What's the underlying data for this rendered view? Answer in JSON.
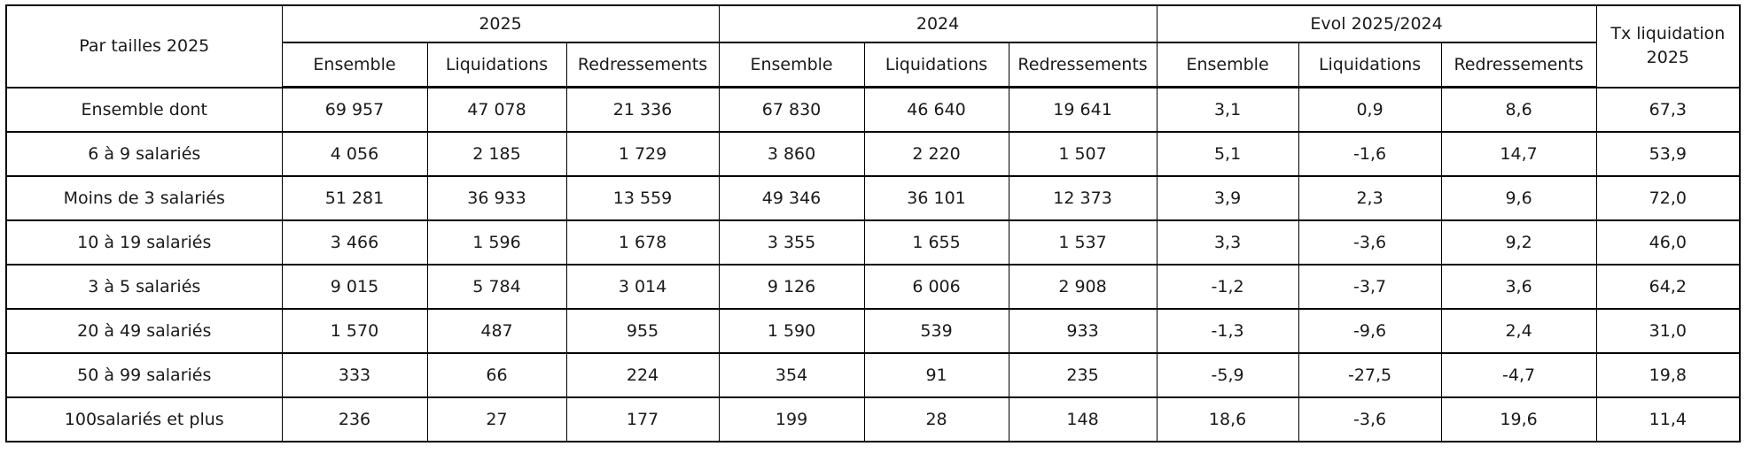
{
  "table": {
    "corner_header": "Par tailles 2025",
    "groups": [
      {
        "label": "2025",
        "columns": [
          "Ensemble",
          "Liquidations",
          "Redressements"
        ]
      },
      {
        "label": "2024",
        "columns": [
          "Ensemble",
          "Liquidations",
          "Redressements"
        ]
      },
      {
        "label": "Evol 2025/2024",
        "columns": [
          "Ensemble",
          "Liquidations",
          "Redressements"
        ]
      }
    ],
    "tx_header": {
      "line1": "Tx liquidation",
      "line2": "2025"
    },
    "rows": [
      {
        "label": "Ensemble dont",
        "values": [
          "69 957",
          "47 078",
          "21 336",
          "67 830",
          "46 640",
          "19 641",
          "3,1",
          "0,9",
          "8,6",
          "67,3"
        ]
      },
      {
        "label": "6 à 9 salariés",
        "values": [
          "4 056",
          "2 185",
          "1 729",
          "3 860",
          "2 220",
          "1 507",
          "5,1",
          "-1,6",
          "14,7",
          "53,9"
        ]
      },
      {
        "label": "Moins de 3 salariés",
        "values": [
          "51 281",
          "36 933",
          "13 559",
          "49 346",
          "36 101",
          "12 373",
          "3,9",
          "2,3",
          "9,6",
          "72,0"
        ]
      },
      {
        "label": "10 à 19 salariés",
        "values": [
          "3 466",
          "1 596",
          "1 678",
          "3 355",
          "1 655",
          "1 537",
          "3,3",
          "-3,6",
          "9,2",
          "46,0"
        ]
      },
      {
        "label": "3 à 5 salariés",
        "values": [
          "9 015",
          "5 784",
          "3 014",
          "9 126",
          "6 006",
          "2 908",
          "-1,2",
          "-3,7",
          "3,6",
          "64,2"
        ]
      },
      {
        "label": "20 à 49 salariés",
        "values": [
          "1 570",
          "487",
          "955",
          "1 590",
          "539",
          "933",
          "-1,3",
          "-9,6",
          "2,4",
          "31,0"
        ]
      },
      {
        "label": "50 à 99 salariés",
        "values": [
          "333",
          "66",
          "224",
          "354",
          "91",
          "235",
          "-5,9",
          "-27,5",
          "-4,7",
          "19,8"
        ]
      },
      {
        "label": "100salariés et plus",
        "values": [
          "236",
          "27",
          "177",
          "199",
          "28",
          "148",
          "18,6",
          "-3,6",
          "19,6",
          "11,4"
        ]
      }
    ]
  },
  "chart_data": {
    "type": "table",
    "title": "Par tailles 2025",
    "column_groups": [
      "2025",
      "2024",
      "Evol 2025/2024",
      "Tx liquidation 2025"
    ],
    "columns": [
      "Par tailles 2025",
      "2025 Ensemble",
      "2025 Liquidations",
      "2025 Redressements",
      "2024 Ensemble",
      "2024 Liquidations",
      "2024 Redressements",
      "Evol 2025/2024 Ensemble",
      "Evol 2025/2024 Liquidations",
      "Evol 2025/2024 Redressements",
      "Tx liquidation 2025"
    ],
    "rows": [
      [
        "Ensemble dont",
        69957,
        47078,
        21336,
        67830,
        46640,
        19641,
        3.1,
        0.9,
        8.6,
        67.3
      ],
      [
        "6 à 9 salariés",
        4056,
        2185,
        1729,
        3860,
        2220,
        1507,
        5.1,
        -1.6,
        14.7,
        53.9
      ],
      [
        "Moins de 3 salariés",
        51281,
        36933,
        13559,
        49346,
        36101,
        12373,
        3.9,
        2.3,
        9.6,
        72.0
      ],
      [
        "10 à 19 salariés",
        3466,
        1596,
        1678,
        3355,
        1655,
        1537,
        3.3,
        -3.6,
        9.2,
        46.0
      ],
      [
        "3 à 5 salariés",
        9015,
        5784,
        3014,
        9126,
        6006,
        2908,
        -1.2,
        -3.7,
        3.6,
        64.2
      ],
      [
        "20 à 49 salariés",
        1570,
        487,
        955,
        1590,
        539,
        933,
        -1.3,
        -9.6,
        2.4,
        31.0
      ],
      [
        "50 à 99 salariés",
        333,
        66,
        224,
        354,
        91,
        235,
        -5.9,
        -27.5,
        -4.7,
        19.8
      ],
      [
        "100salariés et plus",
        236,
        27,
        177,
        199,
        28,
        148,
        18.6,
        -3.6,
        19.6,
        11.4
      ]
    ],
    "notes": "Numbers shown with French formatting: thousands separated by space, decimal comma. Evol columns and Tx liquidation are percentages."
  }
}
